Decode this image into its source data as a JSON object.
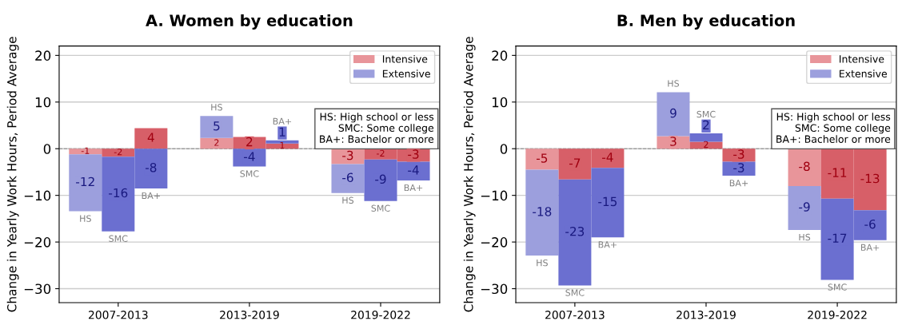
{
  "chart_data": [
    {
      "type": "bar",
      "stacked": true,
      "title": "A. Women by education",
      "ylabel": "Change in Yearly Work Hours, Period Average",
      "categories": [
        null,
        "2007-2013",
        null,
        null,
        null,
        "2013-2019",
        null,
        null,
        null,
        "2019-2022",
        null
      ],
      "series": [
        {
          "name": "Intensive",
          "colors": [
            "#e8959a",
            "#d75f68",
            "#d75f68",
            null,
            "#e8959a",
            "#d75f68",
            "#d75f68",
            null,
            "#e8959a",
            "#d75f68",
            "#d75f68"
          ],
          "values": [
            -1.2,
            -1.7,
            4.4,
            null,
            2.3,
            2.5,
            1.1,
            null,
            -3.3,
            -2.3,
            -2.8
          ],
          "value_labels": [
            "-1",
            "-2",
            "4",
            null,
            "2",
            "2",
            "1",
            null,
            "-3",
            "-2",
            "-3"
          ]
        },
        {
          "name": "Extensive",
          "colors": [
            "#9c9fdd",
            "#6b6fd0",
            "#6b6fd0",
            null,
            "#9c9fdd",
            "#6b6fd0",
            "#6b6fd0",
            null,
            "#9c9fdd",
            "#6b6fd0",
            "#6b6fd0"
          ],
          "values": [
            -12.2,
            -16.0,
            -8.5,
            null,
            4.7,
            -3.8,
            0.7,
            null,
            -6.2,
            -8.9,
            -4.0
          ],
          "value_labels": [
            "-12",
            "-16",
            "-8",
            null,
            "5",
            "-4",
            "1",
            null,
            "-6",
            "-9",
            "-4"
          ]
        }
      ],
      "annotations": [
        "HS",
        "SMC",
        "BA+",
        "HS",
        "SMC",
        "BA+",
        "HS",
        "SMC",
        "BA+",
        "HS: High school or less\nSMC: Some college\nBA+: Bachelor or more"
      ],
      "ylim": [
        -33,
        22
      ],
      "yticks": [
        {
          "value": -30,
          "label": "−30"
        },
        {
          "value": -20,
          "label": "−20"
        },
        {
          "value": -10,
          "label": "−10"
        },
        0,
        10,
        20
      ],
      "ref_lines": [
        {
          "axis": "y",
          "value": 0,
          "color": "#888888",
          "line_style": "dashed"
        }
      ],
      "grid": "y",
      "legend": "top right"
    },
    {
      "type": "bar",
      "stacked": true,
      "title": "B. Men by education",
      "ylabel": "Change in Yearly Work Hours, Period Average",
      "categories": [
        null,
        "2007-2013",
        null,
        null,
        null,
        "2013-2019",
        null,
        null,
        null,
        "2019-2022",
        null
      ],
      "series": [
        {
          "name": "Intensive",
          "colors": [
            "#e8959a",
            "#d75f68",
            "#d75f68",
            null,
            "#e8959a",
            "#d75f68",
            "#d75f68",
            null,
            "#e8959a",
            "#d75f68",
            "#d75f68"
          ],
          "values": [
            -4.5,
            -6.6,
            -4.1,
            null,
            2.7,
            1.5,
            -2.8,
            null,
            -8.0,
            -10.7,
            -13.2
          ],
          "value_labels": [
            "-5",
            "-7",
            "-4",
            null,
            "3",
            "2",
            "-3",
            null,
            "-8",
            "-11",
            "-13"
          ]
        },
        {
          "name": "Extensive",
          "colors": [
            "#9c9fdd",
            "#6b6fd0",
            "#6b6fd0",
            null,
            "#9c9fdd",
            "#6b6fd0",
            "#6b6fd0",
            null,
            "#9c9fdd",
            "#6b6fd0",
            "#6b6fd0"
          ],
          "values": [
            -18.4,
            -22.7,
            -14.9,
            null,
            9.4,
            1.8,
            -3.0,
            null,
            -9.4,
            -17.4,
            -6.4
          ],
          "value_labels": [
            "-18",
            "-23",
            "-15",
            null,
            "9",
            "2",
            "-3",
            null,
            "-9",
            "-17",
            "-6"
          ]
        }
      ],
      "annotations": [
        "HS",
        "SMC",
        "BA+",
        "HS",
        "SMC",
        "BA+",
        "HS",
        "SMC",
        "BA+",
        "HS: High school or less\nSMC: Some college\nBA+: Bachelor or more"
      ],
      "ylim": [
        -33,
        22
      ],
      "yticks": [
        {
          "value": -30,
          "label": "−30"
        },
        {
          "value": -20,
          "label": "−20"
        },
        {
          "value": -10,
          "label": "−10"
        },
        0,
        10,
        20
      ],
      "ref_lines": [
        {
          "axis": "y",
          "value": 0,
          "color": "#888888",
          "line_style": "dashed"
        }
      ],
      "grid": "y",
      "legend": "top right"
    }
  ]
}
